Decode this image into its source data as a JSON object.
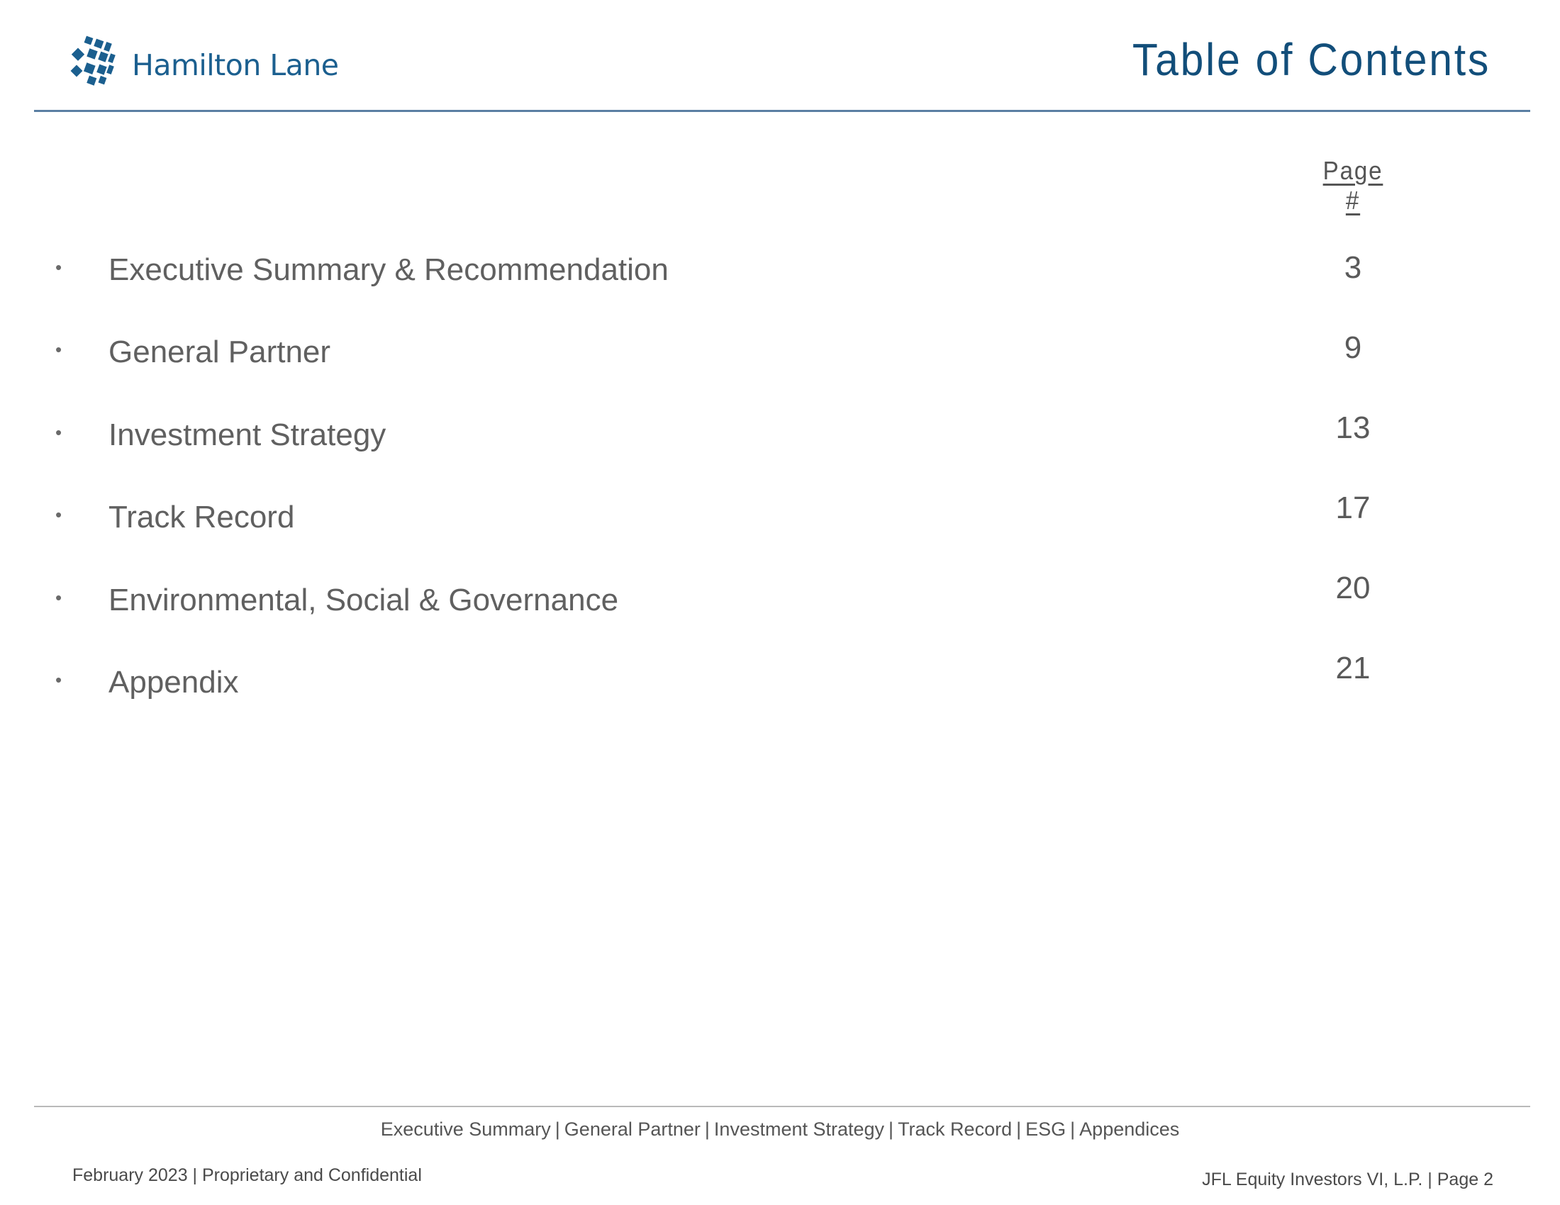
{
  "header": {
    "logo_text": "Hamilton Lane",
    "title": "Table of Contents"
  },
  "toc": {
    "page_column_header": "Page #",
    "bullet": "•",
    "items": [
      {
        "label": "Executive Summary & Recommendation",
        "page": "3"
      },
      {
        "label": "General Partner",
        "page": "9"
      },
      {
        "label": "Investment Strategy",
        "page": "13"
      },
      {
        "label": "Track Record",
        "page": "17"
      },
      {
        "label": "Environmental, Social & Governance",
        "page": "20"
      },
      {
        "label": "Appendix",
        "page": "21"
      }
    ]
  },
  "footer": {
    "nav": [
      "Executive Summary",
      "General Partner",
      "Investment Strategy",
      "Track Record",
      "ESG",
      "Appendices"
    ],
    "nav_separator": "|",
    "left": "February 2023 | Proprietary and Confidential",
    "right": "JFL Equity Investors VI, L.P. | Page 2"
  },
  "colors": {
    "title": "#124e7a",
    "logo": "#1b5f8f",
    "rule": "#5a7fa3",
    "text": "#606060"
  }
}
